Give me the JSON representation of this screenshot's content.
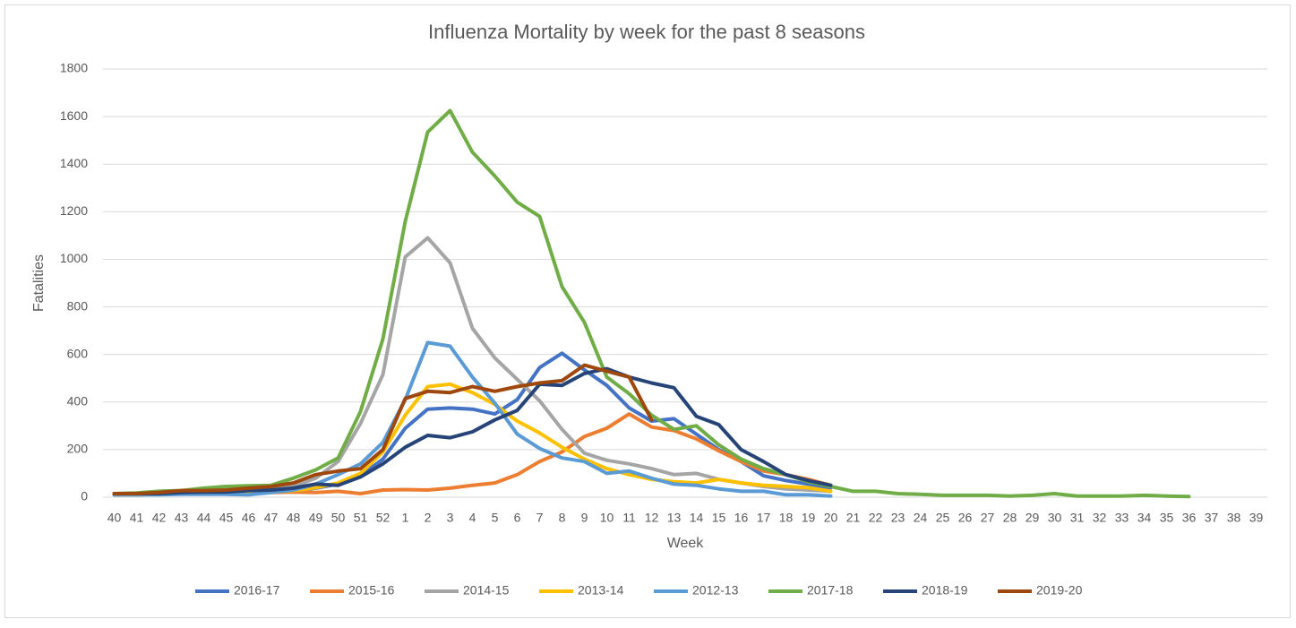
{
  "chart_data": {
    "type": "line",
    "title": "Influenza Mortality by week for the past 8 seasons",
    "x_label": "Week",
    "y_label": "Fatalities",
    "categories": [
      "40",
      "41",
      "42",
      "43",
      "44",
      "45",
      "46",
      "47",
      "48",
      "49",
      "50",
      "51",
      "52",
      "1",
      "2",
      "3",
      "4",
      "5",
      "6",
      "7",
      "8",
      "9",
      "10",
      "11",
      "12",
      "13",
      "14",
      "15",
      "16",
      "17",
      "18",
      "19",
      "20",
      "21",
      "22",
      "23",
      "24",
      "25",
      "26",
      "27",
      "28",
      "29",
      "30",
      "31",
      "32",
      "33",
      "34",
      "35",
      "36",
      "37",
      "38",
      "39"
    ],
    "ylim": [
      0,
      1800
    ],
    "yticks": [
      0,
      200,
      400,
      600,
      800,
      1000,
      1200,
      1400,
      1600,
      1800
    ],
    "grid": true,
    "legend": "bottom",
    "series": [
      {
        "name": "2016-17",
        "color": "#4472c4",
        "values": [
          10,
          10,
          12,
          15,
          15,
          18,
          20,
          22,
          28,
          38,
          55,
          90,
          160,
          290,
          370,
          375,
          370,
          350,
          410,
          545,
          605,
          535,
          470,
          375,
          320,
          330,
          265,
          200,
          150,
          90,
          70,
          55,
          40,
          null,
          null,
          null,
          null,
          null,
          null,
          null,
          null,
          null,
          null,
          null,
          null,
          null,
          null,
          null,
          null,
          null,
          null,
          null
        ]
      },
      {
        "name": "2015-16",
        "color": "#ed7d31",
        "values": [
          10,
          12,
          15,
          15,
          18,
          20,
          22,
          20,
          22,
          20,
          25,
          15,
          30,
          32,
          30,
          38,
          50,
          60,
          95,
          150,
          190,
          255,
          290,
          350,
          295,
          280,
          245,
          195,
          150,
          110,
          95,
          75,
          50,
          null,
          null,
          null,
          null,
          null,
          null,
          null,
          null,
          null,
          null,
          null,
          null,
          null,
          null,
          null,
          null,
          null,
          null,
          null
        ]
      },
      {
        "name": "2014-15",
        "color": "#a5a5a5",
        "values": [
          15,
          15,
          18,
          22,
          25,
          25,
          25,
          30,
          45,
          80,
          150,
          310,
          515,
          1010,
          1090,
          985,
          710,
          585,
          495,
          405,
          285,
          185,
          155,
          140,
          120,
          95,
          100,
          75,
          60,
          45,
          35,
          30,
          25,
          null,
          null,
          null,
          null,
          null,
          null,
          null,
          null,
          null,
          null,
          null,
          null,
          null,
          null,
          null,
          null,
          null,
          null,
          null
        ]
      },
      {
        "name": "2013-14",
        "color": "#ffc000",
        "values": [
          10,
          10,
          12,
          15,
          15,
          18,
          20,
          22,
          28,
          40,
          60,
          100,
          190,
          345,
          465,
          475,
          440,
          390,
          320,
          270,
          210,
          160,
          120,
          95,
          75,
          65,
          60,
          75,
          60,
          50,
          45,
          40,
          25,
          null,
          null,
          null,
          null,
          null,
          null,
          null,
          null,
          null,
          null,
          null,
          null,
          null,
          null,
          null,
          null,
          null,
          null,
          null
        ]
      },
      {
        "name": "2012-13",
        "color": "#5b9bd5",
        "values": [
          10,
          10,
          10,
          12,
          12,
          12,
          10,
          20,
          30,
          55,
          95,
          140,
          230,
          410,
          650,
          635,
          505,
          395,
          265,
          205,
          165,
          150,
          100,
          110,
          80,
          55,
          50,
          35,
          25,
          25,
          10,
          10,
          5,
          null,
          null,
          null,
          null,
          null,
          null,
          null,
          null,
          null,
          null,
          null,
          null,
          null,
          null,
          null,
          null,
          null,
          null,
          null
        ]
      },
      {
        "name": "2017-18",
        "color": "#70ad47",
        "values": [
          15,
          18,
          25,
          28,
          38,
          45,
          48,
          50,
          80,
          115,
          165,
          360,
          665,
          1160,
          1535,
          1625,
          1450,
          1350,
          1240,
          1180,
          885,
          735,
          505,
          435,
          345,
          285,
          300,
          220,
          160,
          120,
          95,
          65,
          45,
          25,
          25,
          15,
          12,
          8,
          8,
          8,
          5,
          8,
          15,
          5,
          5,
          5,
          8,
          5,
          3,
          null,
          null,
          null
        ]
      },
      {
        "name": "2018-19",
        "color": "#264478",
        "values": [
          15,
          15,
          15,
          20,
          22,
          22,
          28,
          30,
          38,
          55,
          50,
          85,
          140,
          210,
          260,
          250,
          275,
          325,
          365,
          475,
          470,
          520,
          540,
          505,
          480,
          460,
          340,
          305,
          200,
          150,
          95,
          70,
          50,
          null,
          null,
          null,
          null,
          null,
          null,
          null,
          null,
          null,
          null,
          null,
          null,
          null,
          null,
          null,
          null,
          null,
          null,
          null
        ]
      },
      {
        "name": "2019-20",
        "color": "#9e480e",
        "values": [
          15,
          15,
          20,
          28,
          28,
          30,
          38,
          45,
          60,
          95,
          110,
          120,
          200,
          415,
          445,
          440,
          465,
          445,
          465,
          480,
          490,
          555,
          530,
          505,
          325,
          null,
          null,
          null,
          null,
          null,
          null,
          null,
          null,
          null,
          null,
          null,
          null,
          null,
          null,
          null,
          null,
          null,
          null,
          null,
          null,
          null,
          null,
          null,
          null,
          null,
          null,
          null
        ]
      }
    ]
  }
}
